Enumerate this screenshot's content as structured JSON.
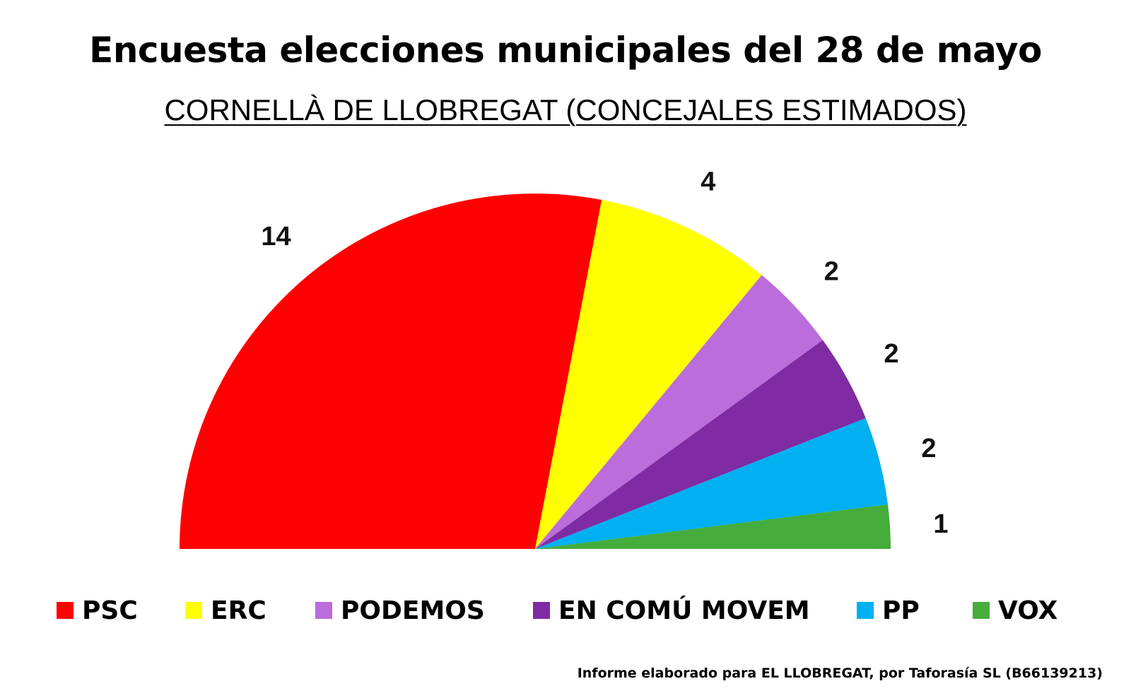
{
  "title": "Encuesta elecciones municipales del 28 de mayo",
  "subtitle": "CORNELLÀ DE LLOBREGAT (CONCEJALES ESTIMADOS)",
  "source": "Informe elaborado para EL LLOBREGAT, por Taforasía SL (B66139213)",
  "chart_data": {
    "type": "pie",
    "variant": "semicircle",
    "title": "Encuesta elecciones municipales del 28 de mayo",
    "subtitle": "CORNELLÀ DE LLOBREGAT (CONCEJALES ESTIMADOS)",
    "categories": [
      "PSC",
      "ERC",
      "PODEMOS",
      "EN COMÚ MOVEM",
      "PP",
      "VOX"
    ],
    "values": [
      14,
      4,
      2,
      2,
      2,
      1
    ],
    "colors": [
      "#fe0000",
      "#ffff00",
      "#ba6ddb",
      "#7f2ba4",
      "#00b0f0",
      "#45ad3b"
    ],
    "legend_position": "bottom"
  }
}
